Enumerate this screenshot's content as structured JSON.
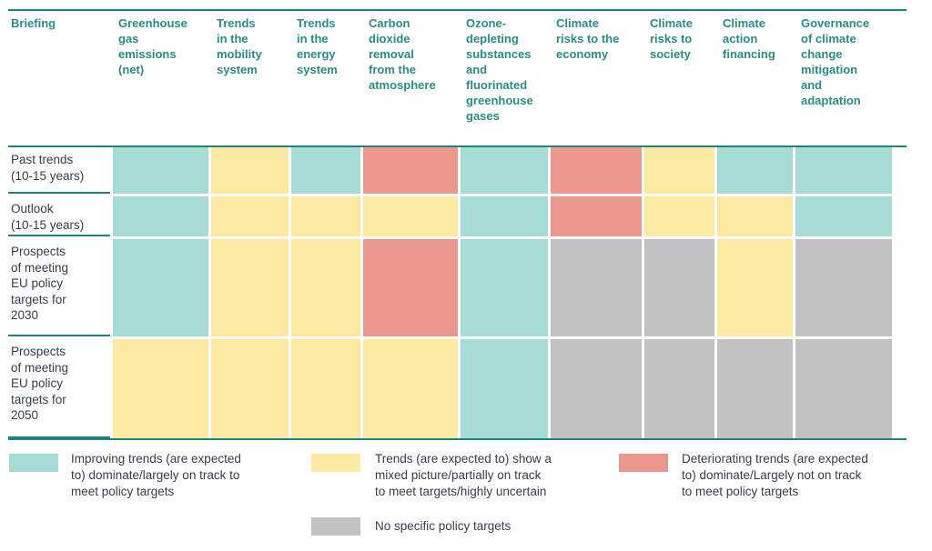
{
  "chart_data": {
    "type": "heatmap",
    "corner_header": "Briefing",
    "columns": [
      "Greenhouse\ngas\nemissions\n(net)",
      "Trends\nin the\nmobility\nsystem",
      "Trends\nin the\nenergy\nsystem",
      "Carbon\ndioxide\nremoval\nfrom the\natmosphere",
      "Ozone-\ndepleting\nsubstances\nand\nfluorinated\ngreenhouse\ngases",
      "Climate\nrisks to the\neconomy",
      "Climate\nrisks to\nsociety",
      "Climate\naction\nfinancing",
      "Governance\nof climate\nchange\nmitigation\nand\nadaptation"
    ],
    "rows": [
      {
        "label": "Past trends\n(10-15 years)",
        "values": [
          "improving",
          "mixed",
          "improving",
          "deteriorating",
          "improving",
          "deteriorating",
          "mixed",
          "improving",
          "improving"
        ]
      },
      {
        "label": "Outlook\n(10-15 years)",
        "values": [
          "improving",
          "mixed",
          "mixed",
          "mixed",
          "improving",
          "deteriorating",
          "mixed",
          "mixed",
          "improving"
        ]
      },
      {
        "label": "Prospects\nof meeting\nEU policy\ntargets for\n2030",
        "values": [
          "improving",
          "mixed",
          "mixed",
          "deteriorating",
          "improving",
          "none",
          "none",
          "mixed",
          "none"
        ]
      },
      {
        "label": "Prospects\nof meeting\nEU policy\ntargets for\n2050",
        "values": [
          "mixed",
          "mixed",
          "mixed",
          "mixed",
          "improving",
          "none",
          "none",
          "none",
          "none"
        ]
      }
    ],
    "status_colors": {
      "improving": "#a6dcd3",
      "mixed": "#fce9a2",
      "deteriorating": "#eb978e",
      "none": "#c2c2c4"
    },
    "accent_rule_color": "#1f837d",
    "header_text_color": "#2b8c86",
    "body_text_color": "#363d4e",
    "legend": [
      {
        "status": "improving",
        "label": "Improving trends (are expected\nto) dominate/largely on track to\nmeet policy targets"
      },
      {
        "status": "mixed",
        "label": "Trends (are expected to) show a\nmixed picture/partially on track\nto meet targets/highly uncertain"
      },
      {
        "status": "deteriorating",
        "label": "Deteriorating trends (are expected\nto) dominate/Largely not on track\nto meet policy targets"
      },
      {
        "status": "none",
        "label": "No specific policy targets"
      }
    ]
  }
}
